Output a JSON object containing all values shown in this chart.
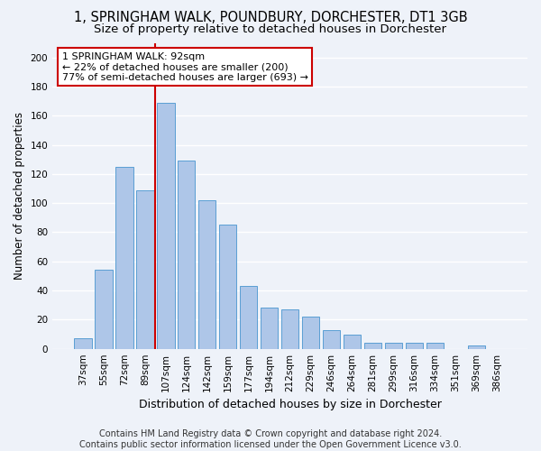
{
  "title": "1, SPRINGHAM WALK, POUNDBURY, DORCHESTER, DT1 3GB",
  "subtitle": "Size of property relative to detached houses in Dorchester",
  "xlabel": "Distribution of detached houses by size in Dorchester",
  "ylabel": "Number of detached properties",
  "bar_labels": [
    "37sqm",
    "55sqm",
    "72sqm",
    "89sqm",
    "107sqm",
    "124sqm",
    "142sqm",
    "159sqm",
    "177sqm",
    "194sqm",
    "212sqm",
    "229sqm",
    "246sqm",
    "264sqm",
    "281sqm",
    "299sqm",
    "316sqm",
    "334sqm",
    "351sqm",
    "369sqm",
    "386sqm"
  ],
  "bar_heights": [
    7,
    54,
    125,
    109,
    169,
    129,
    102,
    85,
    43,
    28,
    27,
    22,
    13,
    10,
    4,
    4,
    4,
    4,
    0,
    2,
    0
  ],
  "bar_color": "#aec6e8",
  "bar_edge_color": "#5a9fd4",
  "vline_x": 3.5,
  "vline_color": "#cc0000",
  "annotation_line1": "1 SPRINGHAM WALK: 92sqm",
  "annotation_line2": "← 22% of detached houses are smaller (200)",
  "annotation_line3": "77% of semi-detached houses are larger (693) →",
  "annotation_box_color": "#ffffff",
  "annotation_box_edge": "#cc0000",
  "ylim": [
    0,
    210
  ],
  "yticks": [
    0,
    20,
    40,
    60,
    80,
    100,
    120,
    140,
    160,
    180,
    200
  ],
  "footer": "Contains HM Land Registry data © Crown copyright and database right 2024.\nContains public sector information licensed under the Open Government Licence v3.0.",
  "bg_color": "#eef2f9",
  "grid_color": "#ffffff",
  "title_fontsize": 10.5,
  "subtitle_fontsize": 9.5,
  "xlabel_fontsize": 9,
  "ylabel_fontsize": 8.5,
  "tick_fontsize": 7.5,
  "annotation_fontsize": 8,
  "footer_fontsize": 7
}
